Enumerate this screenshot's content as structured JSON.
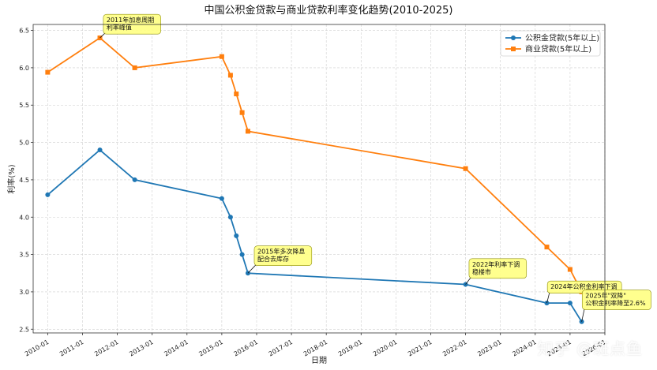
{
  "watermark": "知乎 @斑点鱼",
  "chart_data": {
    "type": "line",
    "title": "中国公积金贷款与商业贷款利率变化趋势(2010-2025)",
    "xlabel": "日期",
    "ylabel": "利率(%)",
    "ylim": [
      2.45,
      6.58
    ],
    "yticks": [
      2.5,
      3.0,
      3.5,
      4.0,
      4.5,
      5.0,
      5.5,
      6.0,
      6.5
    ],
    "xticks": [
      "2010-01",
      "2011-01",
      "2012-01",
      "2013-01",
      "2014-01",
      "2015-01",
      "2016-01",
      "2017-01",
      "2018-01",
      "2019-01",
      "2020-01",
      "2021-01",
      "2022-01",
      "2023-01",
      "2024-01",
      "2025-01",
      "2026-01"
    ],
    "xlim": [
      "2009-08",
      "2026-01"
    ],
    "grid": true,
    "legend": "top-right",
    "series": [
      {
        "name": "公积金贷款(5年以上)",
        "color": "#1f77b4",
        "marker": "circle",
        "x": [
          "2010-01",
          "2011-07",
          "2012-07",
          "2015-01",
          "2015-04",
          "2015-06",
          "2015-08",
          "2015-10",
          "2022-01",
          "2024-05",
          "2025-01",
          "2025-05"
        ],
        "values": [
          4.3,
          4.9,
          4.5,
          4.25,
          4.0,
          3.75,
          3.5,
          3.25,
          3.1,
          2.85,
          2.85,
          2.6
        ]
      },
      {
        "name": "商业贷款(5年以上)",
        "color": "#ff7f0e",
        "marker": "square",
        "x": [
          "2010-01",
          "2011-07",
          "2012-07",
          "2015-01",
          "2015-04",
          "2015-06",
          "2015-08",
          "2015-10",
          "2022-01",
          "2024-05",
          "2025-01",
          "2025-05"
        ],
        "values": [
          5.94,
          6.4,
          6.0,
          6.15,
          5.9,
          5.65,
          5.4,
          5.15,
          4.65,
          3.6,
          3.3,
          3.0
        ]
      }
    ],
    "annotations": [
      {
        "lines": [
          "2011年加息周期",
          "利率峰值"
        ],
        "x": "2011-07",
        "y": 6.4,
        "tx": "2011-09",
        "ty": 6.62
      },
      {
        "lines": [
          "2015年多次降息",
          "配合去库存"
        ],
        "x": "2015-10",
        "y": 3.25,
        "tx": "2016-01",
        "ty": 3.52
      },
      {
        "lines": [
          "2022年利率下调",
          "稳楼市"
        ],
        "x": "2022-01",
        "y": 3.1,
        "tx": "2022-03",
        "ty": 3.35
      },
      {
        "lines": [
          "2024年公积金利率下调"
        ],
        "x": "2024-05",
        "y": 2.85,
        "tx": "2024-06",
        "ty": 3.05
      },
      {
        "lines": [
          "2025年\"双降\"",
          "公积金利率降至2.6%"
        ],
        "x": "2025-05",
        "y": 2.6,
        "tx": "2025-06",
        "ty": 2.93
      }
    ]
  }
}
